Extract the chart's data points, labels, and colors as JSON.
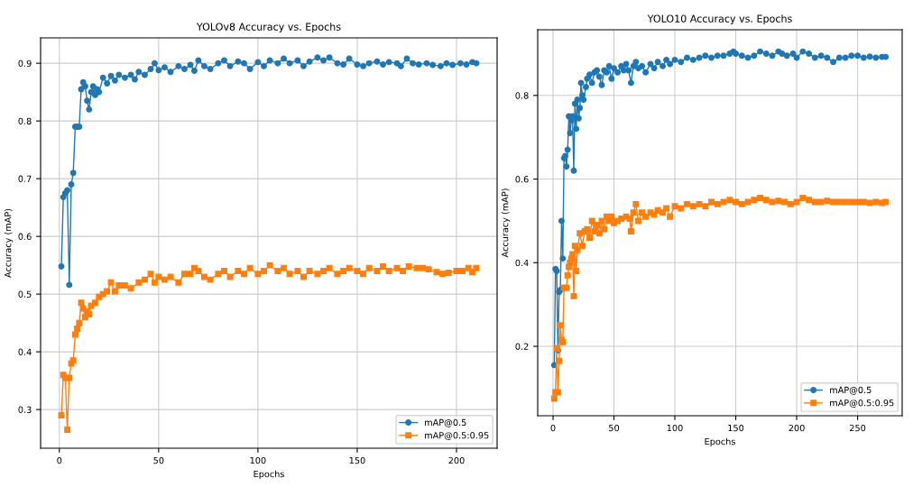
{
  "chart_data": [
    {
      "type": "line",
      "title": "YOLOv8 Accuracy vs. Epochs",
      "xlabel": "Epochs",
      "ylabel": "Accuracy (mAP)",
      "xlim": [
        -9.45,
        220.45
      ],
      "xticks": [
        0,
        50,
        100,
        150,
        200
      ],
      "ylim": [
        0.233,
        0.944
      ],
      "yticks": [
        0.3,
        0.4,
        0.5,
        0.6,
        0.7,
        0.8,
        0.9
      ],
      "grid": true,
      "legend": "bottom right",
      "line_style": "solid",
      "series": [
        {
          "name": "mAP@0.5",
          "color": "#1f77b4",
          "marker": "circle",
          "x": [
            1,
            2,
            3,
            4,
            5,
            6,
            7,
            8,
            9,
            10,
            11,
            12,
            13,
            14,
            15,
            16,
            17,
            18,
            19,
            20,
            22,
            24,
            26,
            28,
            30,
            33,
            36,
            38,
            40,
            43,
            46,
            48,
            50,
            53,
            56,
            60,
            63,
            66,
            68,
            70,
            73,
            76,
            80,
            83,
            86,
            90,
            93,
            96,
            100,
            103,
            106,
            110,
            113,
            116,
            120,
            123,
            126,
            130,
            133,
            136,
            140,
            143,
            146,
            150,
            153,
            156,
            160,
            163,
            166,
            170,
            172,
            175,
            178,
            181,
            185,
            188,
            192,
            195,
            198,
            202,
            205,
            208,
            210
          ],
          "values": [
            0.548,
            0.668,
            0.675,
            0.68,
            0.516,
            0.69,
            0.71,
            0.79,
            0.79,
            0.79,
            0.855,
            0.867,
            0.86,
            0.835,
            0.82,
            0.85,
            0.86,
            0.845,
            0.855,
            0.85,
            0.875,
            0.865,
            0.878,
            0.87,
            0.88,
            0.875,
            0.88,
            0.872,
            0.885,
            0.88,
            0.89,
            0.9,
            0.888,
            0.893,
            0.885,
            0.895,
            0.89,
            0.897,
            0.887,
            0.905,
            0.895,
            0.89,
            0.9,
            0.905,
            0.895,
            0.903,
            0.9,
            0.89,
            0.902,
            0.895,
            0.905,
            0.9,
            0.908,
            0.9,
            0.905,
            0.895,
            0.903,
            0.91,
            0.905,
            0.91,
            0.9,
            0.898,
            0.908,
            0.898,
            0.895,
            0.9,
            0.903,
            0.898,
            0.902,
            0.9,
            0.895,
            0.908,
            0.9,
            0.898,
            0.9,
            0.897,
            0.895,
            0.9,
            0.897,
            0.9,
            0.898,
            0.902,
            0.9
          ]
        },
        {
          "name": "mAP@0.5:0.95",
          "color": "#ff7f0e",
          "marker": "square",
          "x": [
            1,
            2,
            3,
            4,
            5,
            6,
            7,
            8,
            9,
            10,
            11,
            12,
            13,
            14,
            15,
            16,
            18,
            20,
            22,
            24,
            26,
            28,
            30,
            33,
            36,
            40,
            43,
            46,
            48,
            50,
            53,
            56,
            60,
            63,
            66,
            68,
            70,
            73,
            76,
            80,
            83,
            86,
            90,
            93,
            96,
            100,
            103,
            106,
            110,
            113,
            116,
            120,
            123,
            126,
            130,
            133,
            136,
            140,
            143,
            146,
            150,
            153,
            156,
            160,
            163,
            166,
            170,
            173,
            176,
            180,
            183,
            186,
            190,
            193,
            196,
            200,
            203,
            206,
            208,
            210
          ],
          "values": [
            0.29,
            0.36,
            0.355,
            0.265,
            0.355,
            0.38,
            0.385,
            0.43,
            0.44,
            0.45,
            0.485,
            0.475,
            0.46,
            0.47,
            0.465,
            0.48,
            0.485,
            0.495,
            0.5,
            0.505,
            0.52,
            0.505,
            0.515,
            0.515,
            0.51,
            0.52,
            0.525,
            0.535,
            0.52,
            0.53,
            0.525,
            0.53,
            0.52,
            0.535,
            0.535,
            0.545,
            0.54,
            0.53,
            0.525,
            0.535,
            0.54,
            0.53,
            0.54,
            0.535,
            0.545,
            0.535,
            0.54,
            0.55,
            0.54,
            0.545,
            0.535,
            0.54,
            0.53,
            0.54,
            0.535,
            0.54,
            0.545,
            0.535,
            0.54,
            0.545,
            0.54,
            0.535,
            0.545,
            0.54,
            0.548,
            0.54,
            0.545,
            0.54,
            0.548,
            0.545,
            0.545,
            0.543,
            0.538,
            0.535,
            0.537,
            0.54,
            0.54,
            0.545,
            0.538,
            0.545
          ]
        }
      ]
    },
    {
      "type": "line",
      "title": "YOLO10 Accuracy vs. Epochs",
      "xlabel": "Epochs",
      "ylabel": "Accuracy (mAP)",
      "xlim": [
        -12.6,
        286.6
      ],
      "xticks": [
        0,
        50,
        100,
        150,
        200,
        250
      ],
      "ylim": [
        0.034,
        0.957
      ],
      "yticks": [
        0.2,
        0.4,
        0.6,
        0.8
      ],
      "grid": true,
      "legend": "bottom right",
      "line_style": "solid",
      "series": [
        {
          "name": "mAP@0.5",
          "color": "#1f77b4",
          "marker": "circle",
          "x": [
            1,
            2,
            3,
            4,
            5,
            6,
            7,
            8,
            9,
            10,
            11,
            12,
            13,
            14,
            15,
            16,
            17,
            18,
            19,
            20,
            21,
            22,
            23,
            24,
            25,
            27,
            28,
            30,
            32,
            34,
            36,
            38,
            40,
            42,
            44,
            46,
            48,
            50,
            53,
            56,
            58,
            60,
            62,
            64,
            66,
            68,
            70,
            73,
            76,
            80,
            83,
            86,
            90,
            93,
            96,
            100,
            105,
            110,
            115,
            120,
            125,
            130,
            135,
            140,
            145,
            148,
            150,
            155,
            160,
            165,
            170,
            175,
            180,
            185,
            188,
            192,
            197,
            200,
            205,
            210,
            215,
            220,
            225,
            230,
            235,
            240,
            245,
            250,
            255,
            260,
            265,
            270,
            273
          ],
          "values": [
            0.155,
            0.385,
            0.38,
            0.19,
            0.33,
            0.335,
            0.5,
            0.41,
            0.65,
            0.655,
            0.63,
            0.67,
            0.75,
            0.71,
            0.74,
            0.75,
            0.62,
            0.78,
            0.72,
            0.79,
            0.745,
            0.77,
            0.83,
            0.8,
            0.79,
            0.82,
            0.84,
            0.85,
            0.83,
            0.855,
            0.86,
            0.845,
            0.825,
            0.86,
            0.855,
            0.87,
            0.84,
            0.865,
            0.855,
            0.87,
            0.86,
            0.875,
            0.86,
            0.83,
            0.87,
            0.88,
            0.865,
            0.87,
            0.855,
            0.875,
            0.865,
            0.88,
            0.87,
            0.885,
            0.875,
            0.885,
            0.88,
            0.89,
            0.885,
            0.89,
            0.895,
            0.89,
            0.895,
            0.895,
            0.9,
            0.905,
            0.9,
            0.895,
            0.89,
            0.895,
            0.905,
            0.9,
            0.895,
            0.905,
            0.9,
            0.895,
            0.9,
            0.89,
            0.905,
            0.9,
            0.89,
            0.895,
            0.89,
            0.88,
            0.89,
            0.89,
            0.895,
            0.895,
            0.89,
            0.893,
            0.89,
            0.892,
            0.892
          ]
        },
        {
          "name": "mAP@0.5:0.95",
          "color": "#ff7f0e",
          "marker": "square",
          "x": [
            1,
            2,
            3,
            4,
            5,
            6,
            7,
            8,
            9,
            10,
            11,
            12,
            13,
            14,
            15,
            16,
            17,
            18,
            19,
            20,
            22,
            24,
            26,
            28,
            30,
            32,
            34,
            36,
            38,
            40,
            42,
            44,
            46,
            48,
            50,
            53,
            56,
            60,
            63,
            64,
            66,
            68,
            70,
            73,
            76,
            80,
            83,
            86,
            90,
            93,
            96,
            100,
            105,
            110,
            115,
            120,
            125,
            130,
            135,
            140,
            145,
            150,
            155,
            160,
            165,
            170,
            175,
            180,
            185,
            190,
            195,
            200,
            205,
            210,
            215,
            220,
            225,
            230,
            235,
            240,
            245,
            250,
            255,
            260,
            265,
            270,
            273
          ],
          "values": [
            0.075,
            0.09,
            0.195,
            0.09,
            0.165,
            0.25,
            0.215,
            0.21,
            0.34,
            0.34,
            0.34,
            0.37,
            0.39,
            0.4,
            0.41,
            0.42,
            0.32,
            0.44,
            0.38,
            0.43,
            0.47,
            0.44,
            0.475,
            0.48,
            0.46,
            0.5,
            0.475,
            0.49,
            0.47,
            0.5,
            0.48,
            0.51,
            0.5,
            0.51,
            0.495,
            0.5,
            0.505,
            0.51,
            0.505,
            0.475,
            0.52,
            0.54,
            0.5,
            0.52,
            0.51,
            0.52,
            0.515,
            0.525,
            0.52,
            0.53,
            0.51,
            0.535,
            0.53,
            0.54,
            0.535,
            0.54,
            0.535,
            0.545,
            0.54,
            0.545,
            0.55,
            0.545,
            0.54,
            0.545,
            0.55,
            0.555,
            0.55,
            0.545,
            0.548,
            0.545,
            0.54,
            0.545,
            0.555,
            0.55,
            0.545,
            0.545,
            0.548,
            0.545,
            0.545,
            0.545,
            0.545,
            0.545,
            0.545,
            0.543,
            0.545,
            0.543,
            0.545
          ]
        }
      ]
    }
  ]
}
